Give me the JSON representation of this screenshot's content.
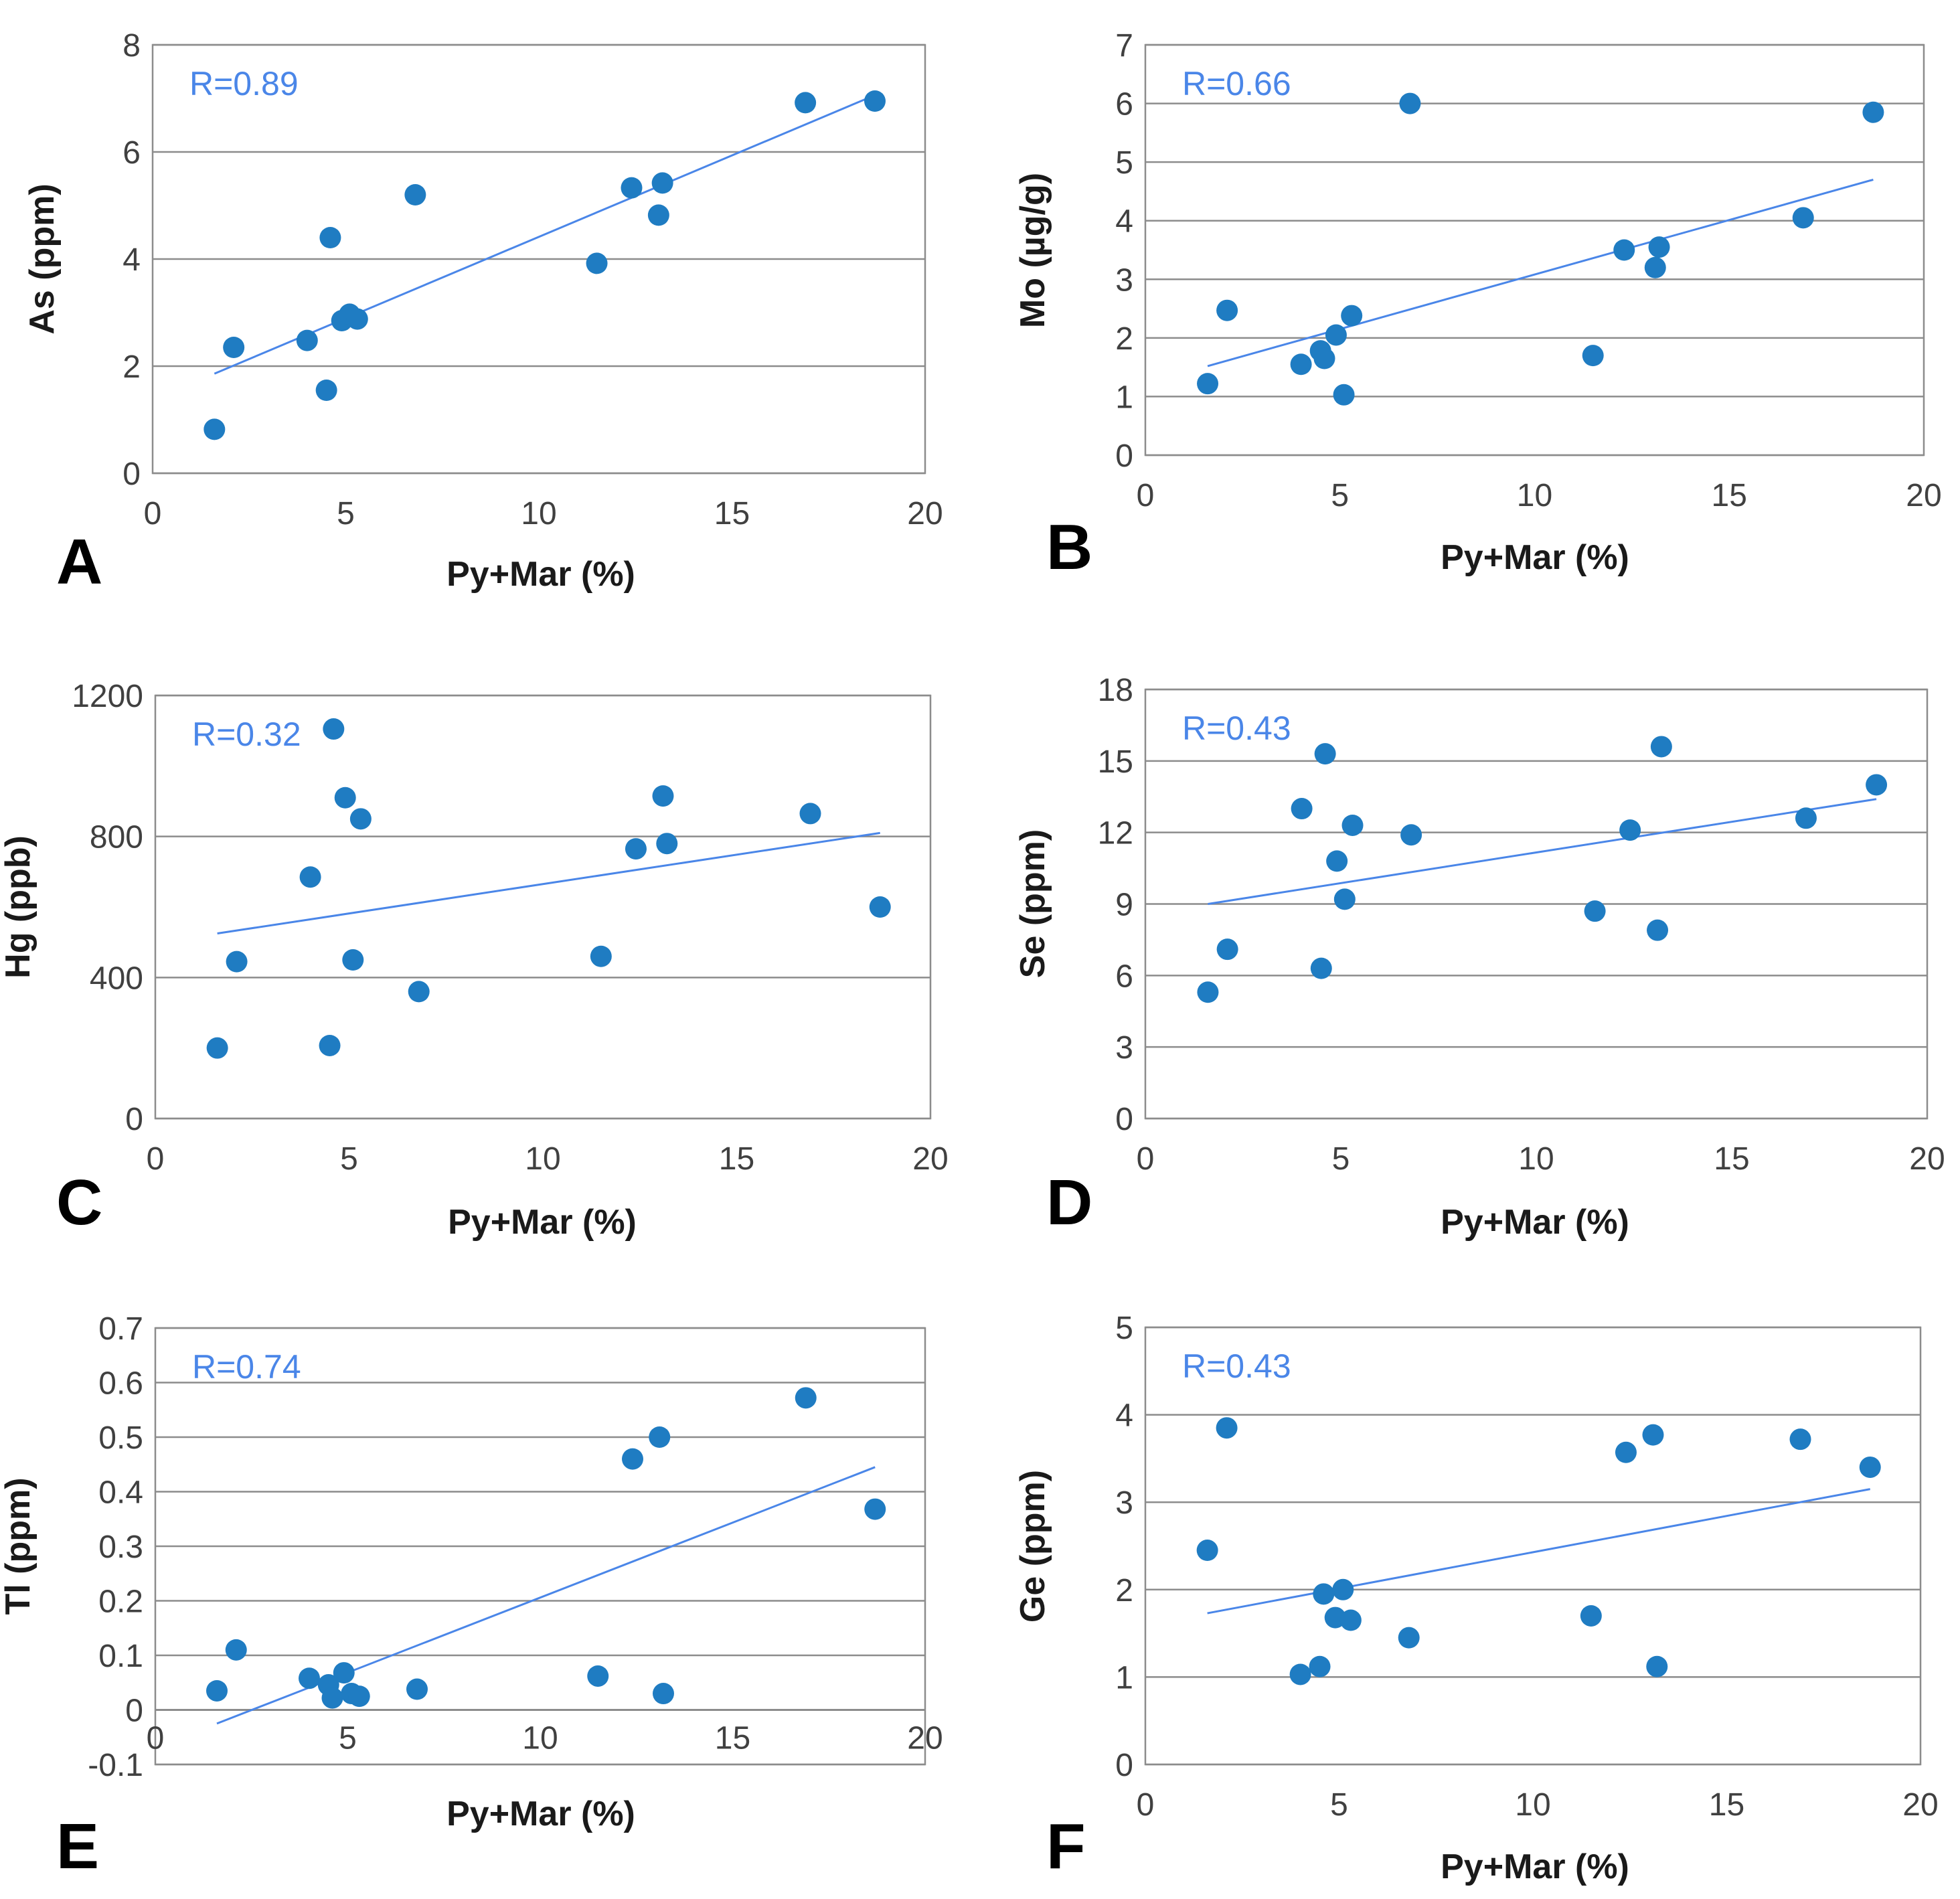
{
  "colors": {
    "point": "#1f7cc2",
    "trend": "#4a86e8",
    "rlabel": "#4a86e8",
    "grid": "#8c8c8c",
    "frame": "#8c8c8c"
  },
  "chart_data": [
    {
      "type": "scatter",
      "panel": "A",
      "title": "",
      "xlabel": "Py+Mar (%)",
      "ylabel": "As (ppm)",
      "xlim": [
        0,
        20
      ],
      "ylim": [
        0,
        8
      ],
      "xticks": [
        0,
        5,
        10,
        15,
        20
      ],
      "yticks": [
        0,
        2,
        4,
        6,
        8
      ],
      "xtick_labels": [
        "0",
        "5",
        "10",
        "15",
        "20"
      ],
      "ytick_labels": [
        "0",
        "2",
        "4",
        "6",
        "8"
      ],
      "annotation": "R=0.89",
      "points": [
        [
          1.6,
          0.82
        ],
        [
          2.1,
          2.35
        ],
        [
          4.0,
          2.48
        ],
        [
          4.5,
          1.55
        ],
        [
          4.6,
          4.4
        ],
        [
          4.9,
          2.85
        ],
        [
          5.1,
          2.97
        ],
        [
          5.3,
          2.88
        ],
        [
          6.8,
          5.2
        ],
        [
          11.5,
          3.92
        ],
        [
          12.4,
          5.33
        ],
        [
          13.1,
          4.82
        ],
        [
          13.2,
          5.42
        ],
        [
          16.9,
          6.92
        ],
        [
          18.7,
          6.95
        ]
      ],
      "trendline": [
        [
          1.6,
          1.86
        ],
        [
          18.7,
          7.06
        ]
      ]
    },
    {
      "type": "scatter",
      "panel": "B",
      "title": "",
      "xlabel": "Py+Mar (%)",
      "ylabel": "Mo (µg/g)",
      "xlim": [
        0,
        20
      ],
      "ylim": [
        0,
        7
      ],
      "xticks": [
        0,
        5,
        10,
        15,
        20
      ],
      "yticks": [
        0,
        1,
        2,
        3,
        4,
        5,
        6,
        7
      ],
      "xtick_labels": [
        "0",
        "5",
        "10",
        "15",
        "20"
      ],
      "ytick_labels": [
        "0",
        "1",
        "2",
        "3",
        "4",
        "5",
        "6",
        "7"
      ],
      "annotation": "R=0.66",
      "points": [
        [
          1.6,
          1.22
        ],
        [
          2.1,
          2.47
        ],
        [
          4.0,
          1.55
        ],
        [
          4.5,
          1.78
        ],
        [
          4.6,
          1.65
        ],
        [
          4.9,
          2.05
        ],
        [
          5.1,
          1.03
        ],
        [
          5.3,
          2.38
        ],
        [
          6.8,
          6.0
        ],
        [
          11.5,
          1.7
        ],
        [
          12.3,
          3.5
        ],
        [
          13.1,
          3.2
        ],
        [
          13.2,
          3.55
        ],
        [
          16.9,
          4.05
        ],
        [
          18.7,
          5.85
        ]
      ],
      "trendline": [
        [
          1.6,
          1.52
        ],
        [
          18.7,
          4.7
        ]
      ]
    },
    {
      "type": "scatter",
      "panel": "C",
      "title": "",
      "xlabel": "Py+Mar (%)",
      "ylabel": "Hg (ppb)",
      "xlim": [
        0,
        20
      ],
      "ylim": [
        0,
        1200
      ],
      "xticks": [
        0,
        5,
        10,
        15,
        20
      ],
      "yticks": [
        0,
        400,
        800,
        1200
      ],
      "xtick_labels": [
        "0",
        "5",
        "10",
        "15",
        "20"
      ],
      "ytick_labels": [
        "0",
        "400",
        "800",
        "1200"
      ],
      "annotation": "R=0.32",
      "points": [
        [
          1.6,
          200
        ],
        [
          2.1,
          445
        ],
        [
          4.0,
          685
        ],
        [
          4.5,
          207
        ],
        [
          4.6,
          1105
        ],
        [
          4.9,
          910
        ],
        [
          5.1,
          450
        ],
        [
          5.3,
          850
        ],
        [
          6.8,
          360
        ],
        [
          11.5,
          460
        ],
        [
          12.4,
          765
        ],
        [
          13.1,
          915
        ],
        [
          13.2,
          780
        ],
        [
          16.9,
          865
        ],
        [
          18.7,
          600
        ]
      ],
      "trendline": [
        [
          1.6,
          525
        ],
        [
          18.7,
          810
        ]
      ]
    },
    {
      "type": "scatter",
      "panel": "D",
      "title": "",
      "xlabel": "Py+Mar (%)",
      "ylabel": "Se (ppm)",
      "xlim": [
        0,
        20
      ],
      "ylim": [
        0,
        18
      ],
      "xticks": [
        0,
        5,
        10,
        15,
        20
      ],
      "yticks": [
        0,
        3,
        6,
        9,
        12,
        15,
        18
      ],
      "xtick_labels": [
        "0",
        "5",
        "10",
        "15",
        "20"
      ],
      "ytick_labels": [
        "0",
        "3",
        "6",
        "9",
        "12",
        "15",
        "18"
      ],
      "annotation": "R=0.43",
      "points": [
        [
          1.6,
          5.3
        ],
        [
          2.1,
          7.1
        ],
        [
          4.0,
          13.0
        ],
        [
          4.5,
          6.3
        ],
        [
          4.6,
          15.3
        ],
        [
          4.9,
          10.8
        ],
        [
          5.1,
          9.2
        ],
        [
          5.3,
          12.3
        ],
        [
          6.8,
          11.9
        ],
        [
          11.5,
          8.7
        ],
        [
          12.4,
          12.1
        ],
        [
          13.1,
          7.9
        ],
        [
          13.2,
          15.6
        ],
        [
          16.9,
          12.6
        ],
        [
          18.7,
          14.0
        ]
      ],
      "trendline": [
        [
          1.6,
          9.0
        ],
        [
          18.7,
          13.4
        ]
      ]
    },
    {
      "type": "scatter",
      "panel": "E",
      "title": "",
      "xlabel": "Py+Mar (%)",
      "ylabel": "Tl (ppm)",
      "xlim": [
        0,
        20
      ],
      "ylim": [
        -0.1,
        0.7
      ],
      "xticks": [
        0,
        5,
        10,
        15,
        20
      ],
      "yticks": [
        -0.1,
        0,
        0.1,
        0.2,
        0.3,
        0.4,
        0.5,
        0.6,
        0.7
      ],
      "xtick_labels": [
        "0",
        "5",
        "10",
        "15",
        "20"
      ],
      "ytick_labels": [
        "-0.1",
        "0",
        "0.1",
        "0.2",
        "0.3",
        "0.4",
        "0.5",
        "0.6",
        "0.7"
      ],
      "annotation": "R=0.74",
      "points": [
        [
          1.6,
          0.035
        ],
        [
          2.1,
          0.11
        ],
        [
          4.0,
          0.058
        ],
        [
          4.5,
          0.046
        ],
        [
          4.6,
          0.022
        ],
        [
          4.9,
          0.068
        ],
        [
          5.1,
          0.03
        ],
        [
          5.3,
          0.025
        ],
        [
          6.8,
          0.038
        ],
        [
          11.5,
          0.062
        ],
        [
          12.4,
          0.46
        ],
        [
          13.1,
          0.5
        ],
        [
          13.2,
          0.03
        ],
        [
          16.9,
          0.572
        ],
        [
          18.7,
          0.368
        ]
      ],
      "trendline": [
        [
          1.6,
          -0.025
        ],
        [
          18.7,
          0.445
        ]
      ]
    },
    {
      "type": "scatter",
      "panel": "F",
      "title": "",
      "xlabel": "Py+Mar (%)",
      "ylabel": "Ge (ppm)",
      "xlim": [
        0,
        20
      ],
      "ylim": [
        0,
        5
      ],
      "xticks": [
        0,
        5,
        10,
        15,
        20
      ],
      "yticks": [
        0,
        1,
        2,
        3,
        4,
        5
      ],
      "xtick_labels": [
        "0",
        "5",
        "10",
        "15",
        "20"
      ],
      "ytick_labels": [
        "0",
        "1",
        "2",
        "3",
        "4",
        "5"
      ],
      "annotation": "R=0.43",
      "points": [
        [
          1.6,
          2.45
        ],
        [
          2.1,
          3.85
        ],
        [
          4.0,
          1.03
        ],
        [
          4.5,
          1.12
        ],
        [
          4.6,
          1.95
        ],
        [
          4.9,
          1.68
        ],
        [
          5.1,
          2.0
        ],
        [
          5.3,
          1.65
        ],
        [
          6.8,
          1.45
        ],
        [
          11.5,
          1.7
        ],
        [
          12.4,
          3.57
        ],
        [
          13.1,
          3.77
        ],
        [
          13.2,
          1.12
        ],
        [
          16.9,
          3.72
        ],
        [
          18.7,
          3.4
        ]
      ],
      "trendline": [
        [
          1.6,
          1.73
        ],
        [
          18.7,
          3.15
        ]
      ]
    }
  ]
}
